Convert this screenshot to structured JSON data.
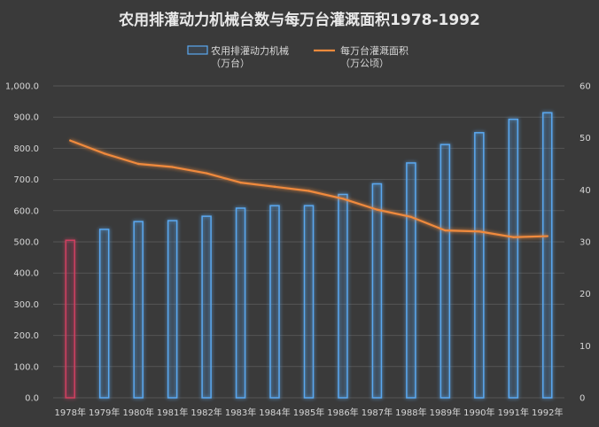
{
  "chart_data": {
    "type": "bar",
    "title": "农用排灌动力机械台数与每万台灌溉面积1978-1992",
    "categories": [
      "1978年",
      "1979年",
      "1980年",
      "1981年",
      "1982年",
      "1983年",
      "1984年",
      "1985年",
      "1986年",
      "1987年",
      "1988年",
      "1989年",
      "1990年",
      "1991年",
      "1992年"
    ],
    "series": [
      {
        "name": "农用排灌动力机械\n（万台）",
        "type": "bar",
        "axis": "left",
        "values": [
          505,
          540,
          565,
          568,
          582,
          608,
          616,
          616,
          652,
          686,
          753,
          812,
          850,
          893,
          914
        ],
        "color": "#5aa8f0",
        "highlight_color": "#d04060"
      },
      {
        "name": "每万台灌溉面积\n（万公顷）",
        "type": "line",
        "axis": "right",
        "values": [
          49.5,
          47.0,
          45.0,
          44.4,
          43.2,
          41.4,
          40.6,
          39.8,
          38.3,
          36.2,
          34.8,
          32.2,
          32.0,
          30.9,
          31.1
        ],
        "color": "#f08a3c"
      }
    ],
    "y_left": {
      "min": 0,
      "max": 1000,
      "step": 100,
      "tick_labels": [
        "0.0",
        "100.0",
        "200.0",
        "300.0",
        "400.0",
        "500.0",
        "600.0",
        "700.0",
        "800.0",
        "900.0",
        "1,000.0"
      ]
    },
    "y_right": {
      "min": 0,
      "max": 60,
      "step": 10,
      "tick_labels": [
        "0",
        "10",
        "20",
        "30",
        "40",
        "50",
        "60"
      ]
    },
    "grid": true,
    "legend": "top-center"
  }
}
